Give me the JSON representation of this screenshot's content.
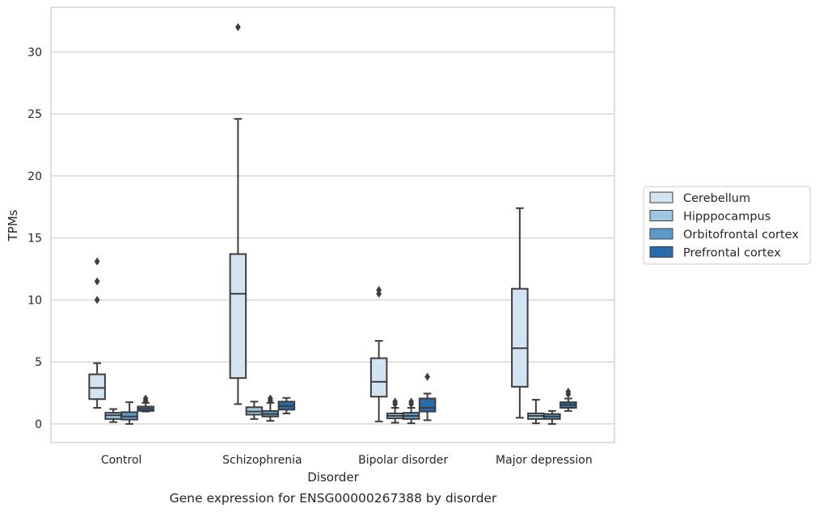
{
  "chart_data": {
    "type": "box",
    "xlabel": "Disorder",
    "ylabel": "TPMs",
    "caption": "Gene expression for ENSG00000267388 by disorder",
    "ylim": [
      -1.5,
      33.6
    ],
    "yticks": [
      0,
      5,
      10,
      15,
      20,
      25,
      30
    ],
    "grid": "horizontal",
    "legend_position": "right",
    "categories": [
      "Control",
      "Schizophrenia",
      "Bipolar disorder",
      "Major depression"
    ],
    "series": [
      {
        "name": "Cerebellum",
        "color": "#d4e3f1",
        "boxes": [
          {
            "whislo": 1.3,
            "q1": 2.0,
            "med": 2.9,
            "q3": 4.0,
            "whishi": 4.9,
            "fliers": [
              10.0,
              11.5,
              13.1
            ]
          },
          {
            "whislo": 1.6,
            "q1": 3.7,
            "med": 10.5,
            "q3": 13.7,
            "whishi": 24.6,
            "fliers": [
              32.0
            ]
          },
          {
            "whislo": 0.2,
            "q1": 2.2,
            "med": 3.4,
            "q3": 5.3,
            "whishi": 6.7,
            "fliers": [
              10.5,
              10.8
            ]
          },
          {
            "whislo": 0.5,
            "q1": 3.0,
            "med": 6.1,
            "q3": 10.9,
            "whishi": 17.4,
            "fliers": []
          }
        ]
      },
      {
        "name": "Hipppocampus",
        "color": "#9ec8e0",
        "boxes": [
          {
            "whislo": 0.15,
            "q1": 0.4,
            "med": 0.7,
            "q3": 0.9,
            "whishi": 1.2,
            "fliers": []
          },
          {
            "whislo": 0.4,
            "q1": 0.75,
            "med": 1.0,
            "q3": 1.35,
            "whishi": 1.8,
            "fliers": []
          },
          {
            "whislo": 0.1,
            "q1": 0.45,
            "med": 0.65,
            "q3": 0.85,
            "whishi": 1.3,
            "fliers": [
              1.6,
              1.8
            ]
          },
          {
            "whislo": 0.05,
            "q1": 0.4,
            "med": 0.65,
            "q3": 0.85,
            "whishi": 1.95,
            "fliers": []
          }
        ]
      },
      {
        "name": "Orbitofrontal cortex",
        "color": "#5a9bc9",
        "boxes": [
          {
            "whislo": 0.0,
            "q1": 0.35,
            "med": 0.6,
            "q3": 0.95,
            "whishi": 1.75,
            "fliers": []
          },
          {
            "whislo": 0.25,
            "q1": 0.6,
            "med": 0.8,
            "q3": 1.05,
            "whishi": 1.7,
            "fliers": [
              1.85,
              2.05
            ]
          },
          {
            "whislo": 0.05,
            "q1": 0.4,
            "med": 0.65,
            "q3": 0.9,
            "whishi": 1.3,
            "fliers": [
              1.6,
              1.8
            ]
          },
          {
            "whislo": 0.0,
            "q1": 0.4,
            "med": 0.6,
            "q3": 0.8,
            "whishi": 1.05,
            "fliers": []
          }
        ]
      },
      {
        "name": "Prefrontal cortex",
        "color": "#2a6aa8",
        "boxes": [
          {
            "whislo": 1.0,
            "q1": 1.05,
            "med": 1.2,
            "q3": 1.4,
            "whishi": 1.7,
            "fliers": [
              1.85,
              2.05
            ]
          },
          {
            "whislo": 0.85,
            "q1": 1.15,
            "med": 1.45,
            "q3": 1.8,
            "whishi": 2.1,
            "fliers": []
          },
          {
            "whislo": 0.3,
            "q1": 1.0,
            "med": 1.3,
            "q3": 2.05,
            "whishi": 2.45,
            "fliers": [
              3.8
            ]
          },
          {
            "whislo": 1.05,
            "q1": 1.3,
            "med": 1.55,
            "q3": 1.75,
            "whishi": 2.05,
            "fliers": [
              2.4,
              2.6
            ]
          }
        ]
      }
    ]
  }
}
